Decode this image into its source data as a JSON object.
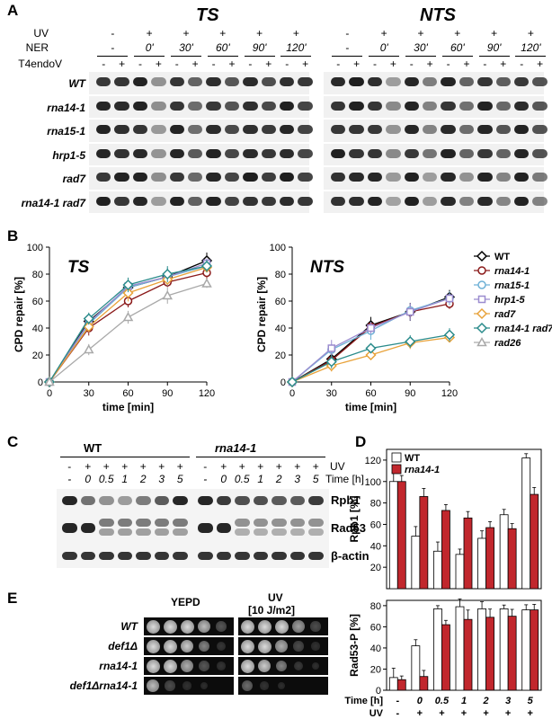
{
  "panel_labels": [
    "A",
    "B",
    "C",
    "D",
    "E"
  ],
  "panelA": {
    "gel_titles": [
      "TS",
      "NTS"
    ],
    "header_labels": {
      "uv": "UV",
      "ner": "NER",
      "t4": "T4endoV"
    },
    "uv_row": [
      "-",
      "+",
      "+",
      "+",
      "+",
      "+"
    ],
    "ner_row": [
      "-",
      "0'",
      "30'",
      "60'",
      "90'",
      "120'"
    ],
    "t4_row": [
      "-",
      "+",
      "-",
      "+",
      "-",
      "+",
      "-",
      "+",
      "-",
      "+",
      "-",
      "+"
    ],
    "strains": [
      "WT",
      "rna14-1",
      "rna15-1",
      "hrp1-5",
      "rad7",
      "rna14-1 rad7"
    ]
  },
  "colors": {
    "WT": "#000000",
    "rna14-1": "#8b1a1a",
    "rna15-1": "#6fb1d6",
    "hrp1-5": "#9b8ccf",
    "rad7": "#e8a23a",
    "rna14-1 rad7": "#2a8b8b",
    "rad26": "#a9a9a9",
    "bar_white": "#ffffff",
    "bar_red": "#c1272d"
  },
  "chart_data": [
    {
      "type": "line",
      "title": "TS",
      "xlabel": "time [min]",
      "ylabel": "CPD repair [%]",
      "x": [
        0,
        30,
        60,
        90,
        120
      ],
      "xlim": [
        0,
        120
      ],
      "ylim": [
        0,
        100
      ],
      "yticks": [
        0,
        20,
        40,
        60,
        80,
        100
      ],
      "series": [
        {
          "name": "WT",
          "values": [
            0,
            45,
            70,
            78,
            90
          ]
        },
        {
          "name": "rna14-1",
          "values": [
            0,
            40,
            60,
            74,
            81
          ]
        },
        {
          "name": "rna15-1",
          "values": [
            0,
            43,
            70,
            78,
            86
          ]
        },
        {
          "name": "hrp1-5",
          "values": [
            0,
            44,
            71,
            78,
            88
          ]
        },
        {
          "name": "rad7",
          "values": [
            0,
            41,
            66,
            76,
            85
          ]
        },
        {
          "name": "rna14-1 rad7",
          "values": [
            0,
            47,
            72,
            80,
            86
          ]
        },
        {
          "name": "rad26",
          "values": [
            0,
            24,
            48,
            64,
            73
          ]
        }
      ]
    },
    {
      "type": "line",
      "title": "NTS",
      "xlabel": "time [min]",
      "ylabel": "CPD repair [%]",
      "x": [
        0,
        30,
        60,
        90,
        120
      ],
      "xlim": [
        0,
        120
      ],
      "ylim": [
        0,
        100
      ],
      "yticks": [
        0,
        20,
        40,
        60,
        80,
        100
      ],
      "legend": [
        "WT",
        "rna14-1",
        "rna15-1",
        "hrp1-5",
        "rad7",
        "rna14-1 rad7",
        "rad26"
      ],
      "series": [
        {
          "name": "WT",
          "values": [
            0,
            17,
            42,
            52,
            63
          ]
        },
        {
          "name": "rna14-1",
          "values": [
            0,
            16,
            41,
            52,
            58
          ]
        },
        {
          "name": "rna15-1",
          "values": [
            0,
            24,
            38,
            53,
            62
          ]
        },
        {
          "name": "hrp1-5",
          "values": [
            0,
            25,
            40,
            52,
            62
          ]
        },
        {
          "name": "rad7",
          "values": [
            0,
            12,
            20,
            29,
            33
          ]
        },
        {
          "name": "rna14-1 rad7",
          "values": [
            0,
            15,
            25,
            30,
            35
          ]
        }
      ]
    },
    {
      "type": "bar",
      "ylabel": "Rpb1 [%]",
      "legend": [
        "WT",
        "rna14-1"
      ],
      "categories": [
        "-",
        "0",
        "0.5",
        "1",
        "2",
        "3",
        "5"
      ],
      "ylim": [
        0,
        130
      ],
      "yticks": [
        20,
        40,
        60,
        80,
        100,
        120
      ],
      "series": [
        {
          "name": "WT",
          "values": [
            100,
            49,
            35,
            32,
            47,
            69,
            122
          ]
        },
        {
          "name": "rna14-1",
          "values": [
            100,
            86,
            73,
            66,
            57,
            56,
            88
          ]
        }
      ]
    },
    {
      "type": "bar",
      "ylabel": "Rad53-P [%]",
      "xlabel": "Time [h]",
      "categories": [
        "-",
        "0",
        "0.5",
        "1",
        "2",
        "3",
        "5"
      ],
      "uv_row": [
        "-",
        "+",
        "+",
        "+",
        "+",
        "+",
        "+"
      ],
      "ylim": [
        0,
        85
      ],
      "yticks": [
        0,
        20,
        40,
        60,
        80
      ],
      "series": [
        {
          "name": "WT",
          "values": [
            12,
            42,
            77,
            79,
            77,
            77,
            76
          ]
        },
        {
          "name": "rna14-1",
          "values": [
            10,
            13,
            62,
            67,
            69,
            70,
            76
          ]
        }
      ]
    }
  ],
  "panelC": {
    "strain_titles": [
      "WT",
      "rna14-1"
    ],
    "uv_row": [
      "-",
      "+",
      "+",
      "+",
      "+",
      "+",
      "+"
    ],
    "time_row": [
      "-",
      "0",
      "0.5",
      "1",
      "2",
      "3",
      "5"
    ],
    "uv_label": "UV",
    "time_label": "Time [h]",
    "blot_labels": [
      "Rpb1",
      "Rad53",
      "β-actin"
    ]
  },
  "panelD": {
    "time_label": "Time [h]",
    "uv_label": "UV"
  },
  "panelE": {
    "condition_labels": [
      "YEPD",
      "UV",
      "[10 J/m2]"
    ],
    "strains": [
      "WT",
      "def1Δ",
      "rna14-1",
      "def1Δrna14-1"
    ],
    "growth": {
      "YEPD": [
        [
          1,
          1,
          1,
          0.9,
          0.5
        ],
        [
          1,
          1,
          0.95,
          0.7,
          0.25
        ],
        [
          1,
          1,
          0.85,
          0.5,
          0.2
        ],
        [
          0.9,
          0.45,
          0.12,
          0.03,
          0
        ]
      ],
      "UV": [
        [
          1,
          1,
          1,
          0.8,
          0.45
        ],
        [
          1,
          1,
          0.85,
          0.45,
          0.12
        ],
        [
          1,
          0.95,
          0.7,
          0.35,
          0.08
        ],
        [
          0.6,
          0.18,
          0.04,
          0,
          0
        ]
      ]
    }
  }
}
